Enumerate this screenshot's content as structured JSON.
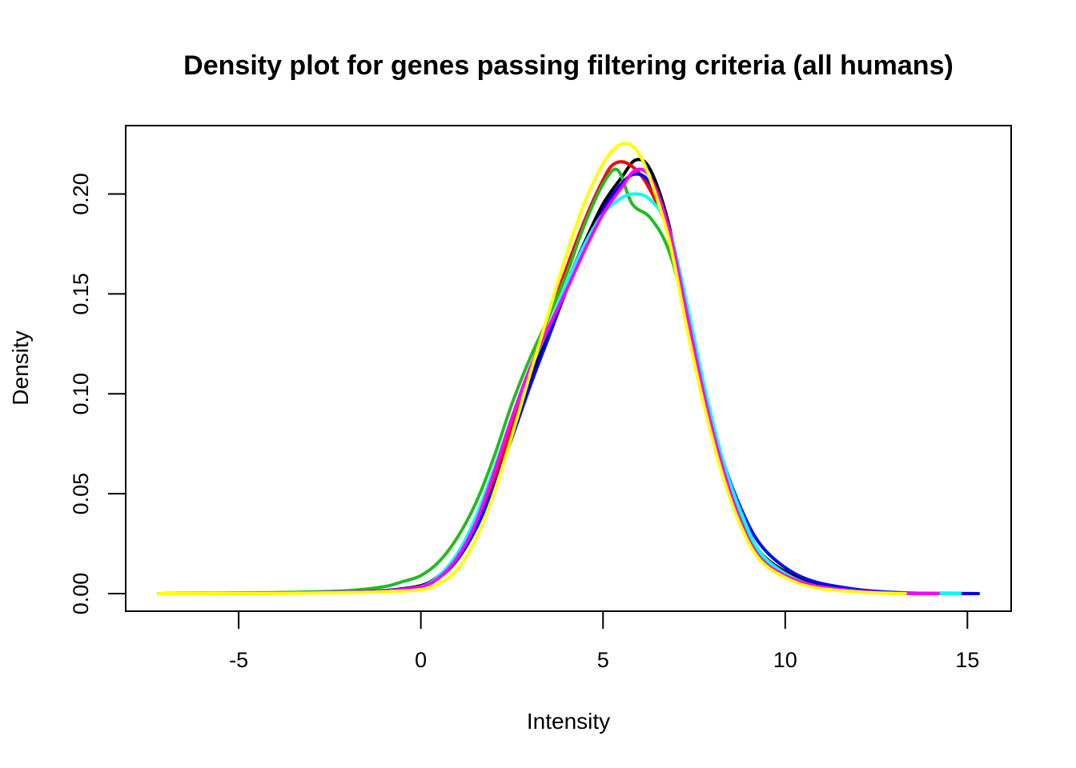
{
  "chart_data": {
    "type": "line",
    "title": "Density plot for genes passing filtering criteria (all humans)",
    "xlabel": "Intensity",
    "ylabel": "Density",
    "xlim": [
      -7.2,
      15.3
    ],
    "ylim": [
      0,
      0.225
    ],
    "xticks": [
      -5,
      0,
      5,
      10,
      15
    ],
    "yticks": [
      "0.00",
      "0.05",
      "0.10",
      "0.15",
      "0.20"
    ],
    "grid": false,
    "legend": "none",
    "series": [
      {
        "color": "#000000",
        "values": [
          [
            -7.2,
            0
          ],
          [
            -4,
            0.0002
          ],
          [
            -2,
            0.0008
          ],
          [
            -1,
            0.0015
          ],
          [
            0,
            0.004
          ],
          [
            0.5,
            0.009
          ],
          [
            1,
            0.018
          ],
          [
            1.5,
            0.034
          ],
          [
            2,
            0.056
          ],
          [
            2.5,
            0.082
          ],
          [
            3,
            0.108
          ],
          [
            3.5,
            0.132
          ],
          [
            4,
            0.155
          ],
          [
            4.5,
            0.176
          ],
          [
            5,
            0.195
          ],
          [
            5.5,
            0.208
          ],
          [
            5.9,
            0.217
          ],
          [
            6.3,
            0.212
          ],
          [
            6.8,
            0.185
          ],
          [
            7.3,
            0.14
          ],
          [
            7.8,
            0.098
          ],
          [
            8.3,
            0.063
          ],
          [
            8.8,
            0.038
          ],
          [
            9.3,
            0.021
          ],
          [
            10,
            0.011
          ],
          [
            10.8,
            0.005
          ],
          [
            12,
            0.0015
          ],
          [
            13,
            0.0003
          ],
          [
            15.3,
            0
          ]
        ]
      },
      {
        "color": "#ff0000",
        "values": [
          [
            -7.2,
            0
          ],
          [
            -4,
            0.0002
          ],
          [
            -2,
            0.0007
          ],
          [
            -1,
            0.0013
          ],
          [
            0,
            0.0035
          ],
          [
            0.5,
            0.008
          ],
          [
            1,
            0.017
          ],
          [
            1.5,
            0.033
          ],
          [
            2,
            0.056
          ],
          [
            2.5,
            0.084
          ],
          [
            3,
            0.112
          ],
          [
            3.5,
            0.138
          ],
          [
            4,
            0.163
          ],
          [
            4.5,
            0.187
          ],
          [
            5,
            0.207
          ],
          [
            5.3,
            0.215
          ],
          [
            5.7,
            0.215
          ],
          [
            6.2,
            0.205
          ],
          [
            6.8,
            0.18
          ],
          [
            7.3,
            0.137
          ],
          [
            7.8,
            0.096
          ],
          [
            8.3,
            0.062
          ],
          [
            8.8,
            0.037
          ],
          [
            9.3,
            0.02
          ],
          [
            10,
            0.01
          ],
          [
            10.8,
            0.004
          ],
          [
            12,
            0.0012
          ],
          [
            13,
            0.0002
          ],
          [
            14.5,
            0
          ]
        ]
      },
      {
        "color": "#22bb22",
        "values": [
          [
            -7.2,
            0
          ],
          [
            -4,
            0.0005
          ],
          [
            -2,
            0.0015
          ],
          [
            -1,
            0.0035
          ],
          [
            -0.5,
            0.006
          ],
          [
            0,
            0.009
          ],
          [
            0.5,
            0.016
          ],
          [
            1,
            0.028
          ],
          [
            1.5,
            0.045
          ],
          [
            2,
            0.068
          ],
          [
            2.5,
            0.095
          ],
          [
            3,
            0.118
          ],
          [
            3.5,
            0.138
          ],
          [
            4,
            0.16
          ],
          [
            4.5,
            0.185
          ],
          [
            5,
            0.205
          ],
          [
            5.4,
            0.212
          ],
          [
            5.8,
            0.195
          ],
          [
            6.3,
            0.188
          ],
          [
            6.8,
            0.172
          ],
          [
            7.3,
            0.139
          ],
          [
            7.8,
            0.099
          ],
          [
            8.3,
            0.063
          ],
          [
            8.8,
            0.037
          ],
          [
            9.3,
            0.02
          ],
          [
            10,
            0.01
          ],
          [
            10.8,
            0.004
          ],
          [
            12,
            0.001
          ],
          [
            13,
            0
          ]
        ]
      },
      {
        "color": "#0000ff",
        "values": [
          [
            -7.2,
            0
          ],
          [
            -4,
            0.0002
          ],
          [
            -2,
            0.0008
          ],
          [
            -1,
            0.0015
          ],
          [
            0,
            0.0035
          ],
          [
            0.5,
            0.008
          ],
          [
            1,
            0.017
          ],
          [
            1.5,
            0.032
          ],
          [
            2,
            0.053
          ],
          [
            2.5,
            0.078
          ],
          [
            3,
            0.104
          ],
          [
            3.5,
            0.128
          ],
          [
            4,
            0.152
          ],
          [
            4.5,
            0.173
          ],
          [
            5,
            0.192
          ],
          [
            5.5,
            0.205
          ],
          [
            5.9,
            0.21
          ],
          [
            6.3,
            0.205
          ],
          [
            6.8,
            0.183
          ],
          [
            7.3,
            0.14
          ],
          [
            7.8,
            0.099
          ],
          [
            8.3,
            0.066
          ],
          [
            8.8,
            0.042
          ],
          [
            9.3,
            0.025
          ],
          [
            10,
            0.013
          ],
          [
            10.8,
            0.006
          ],
          [
            12,
            0.002
          ],
          [
            13,
            0.0006
          ],
          [
            14,
            0.0001
          ],
          [
            15.3,
            0
          ]
        ]
      },
      {
        "color": "#00ffff",
        "values": [
          [
            -7.2,
            0
          ],
          [
            -4,
            0.0002
          ],
          [
            -2,
            0.0007
          ],
          [
            -1,
            0.0013
          ],
          [
            0,
            0.0035
          ],
          [
            0.5,
            0.009
          ],
          [
            1,
            0.02
          ],
          [
            1.5,
            0.038
          ],
          [
            2,
            0.062
          ],
          [
            2.5,
            0.088
          ],
          [
            3,
            0.112
          ],
          [
            3.5,
            0.133
          ],
          [
            4,
            0.155
          ],
          [
            4.5,
            0.175
          ],
          [
            5,
            0.19
          ],
          [
            5.5,
            0.198
          ],
          [
            5.9,
            0.2
          ],
          [
            6.3,
            0.197
          ],
          [
            6.8,
            0.183
          ],
          [
            7.3,
            0.145
          ],
          [
            7.8,
            0.102
          ],
          [
            8.3,
            0.066
          ],
          [
            8.8,
            0.04
          ],
          [
            9.3,
            0.021
          ],
          [
            10,
            0.01
          ],
          [
            10.8,
            0.004
          ],
          [
            12,
            0.0012
          ],
          [
            13,
            0.0002
          ],
          [
            14.8,
            0
          ]
        ]
      },
      {
        "color": "#ff00ff",
        "values": [
          [
            -7.2,
            0
          ],
          [
            -4,
            0.0002
          ],
          [
            -2,
            0.0007
          ],
          [
            -1,
            0.0013
          ],
          [
            0,
            0.0035
          ],
          [
            0.5,
            0.008
          ],
          [
            1,
            0.018
          ],
          [
            1.5,
            0.035
          ],
          [
            2,
            0.06
          ],
          [
            2.5,
            0.088
          ],
          [
            3,
            0.113
          ],
          [
            3.5,
            0.133
          ],
          [
            4,
            0.152
          ],
          [
            4.5,
            0.172
          ],
          [
            5,
            0.19
          ],
          [
            5.5,
            0.203
          ],
          [
            5.9,
            0.212
          ],
          [
            6.3,
            0.208
          ],
          [
            6.8,
            0.183
          ],
          [
            7.3,
            0.14
          ],
          [
            7.8,
            0.097
          ],
          [
            8.3,
            0.062
          ],
          [
            8.8,
            0.035
          ],
          [
            9.3,
            0.018
          ],
          [
            10,
            0.009
          ],
          [
            10.8,
            0.004
          ],
          [
            12,
            0.0012
          ],
          [
            13,
            0.0002
          ],
          [
            14.2,
            0
          ]
        ]
      },
      {
        "color": "#ffff00",
        "values": [
          [
            -7.2,
            0
          ],
          [
            -4,
            0.0001
          ],
          [
            -2,
            0.0005
          ],
          [
            -1,
            0.0009
          ],
          [
            0,
            0.002
          ],
          [
            0.5,
            0.005
          ],
          [
            1,
            0.012
          ],
          [
            1.5,
            0.027
          ],
          [
            2,
            0.05
          ],
          [
            2.5,
            0.079
          ],
          [
            3,
            0.11
          ],
          [
            3.5,
            0.14
          ],
          [
            4,
            0.17
          ],
          [
            4.5,
            0.196
          ],
          [
            5,
            0.215
          ],
          [
            5.4,
            0.224
          ],
          [
            5.8,
            0.224
          ],
          [
            6.2,
            0.212
          ],
          [
            6.8,
            0.178
          ],
          [
            7.3,
            0.133
          ],
          [
            7.8,
            0.092
          ],
          [
            8.3,
            0.058
          ],
          [
            8.8,
            0.033
          ],
          [
            9.3,
            0.017
          ],
          [
            10,
            0.008
          ],
          [
            10.8,
            0.003
          ],
          [
            12,
            0.0008
          ],
          [
            13,
            0.0001
          ],
          [
            13.3,
            0
          ]
        ]
      }
    ]
  }
}
